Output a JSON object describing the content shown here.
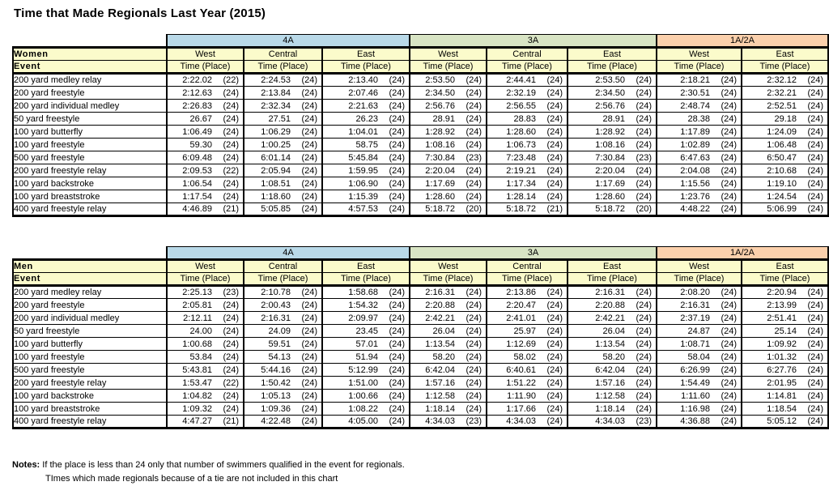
{
  "title": "Time that Made Regionals Last Year (2015)",
  "colors": {
    "band_4a_blue": "#B9D9E8",
    "band_3a_green": "#D8E4C4",
    "band_1a2a_orange": "#FBD0AC",
    "header_yellow": "#FBFBCB"
  },
  "groups": [
    {
      "label": "4A",
      "color_key": "band_4a_blue",
      "regions": [
        "West",
        "Central",
        "East"
      ]
    },
    {
      "label": "3A",
      "color_key": "band_3a_green",
      "regions": [
        "West",
        "Central",
        "East"
      ]
    },
    {
      "label": "1A/2A",
      "color_key": "band_1a2a_orange",
      "regions": [
        "West",
        "East"
      ]
    }
  ],
  "event_label": "Event",
  "time_place_label": "Time (Place)",
  "tables": [
    {
      "name": "Women",
      "rows": [
        {
          "event": "200 yard medley relay",
          "cells": [
            [
              "2:22.02",
              "(22)"
            ],
            [
              "2:24.53",
              "(24)"
            ],
            [
              "2:13.40",
              "(24)"
            ],
            [
              "2:53.50",
              "(24)"
            ],
            [
              "2:44.41",
              "(24)"
            ],
            [
              "2:53.50",
              "(24)"
            ],
            [
              "2:18.21",
              "(24)"
            ],
            [
              "2:32.12",
              "(24)"
            ]
          ]
        },
        {
          "event": "200 yard freestyle",
          "cells": [
            [
              "2:12.63",
              "(24)"
            ],
            [
              "2:13.84",
              "(24)"
            ],
            [
              "2:07.46",
              "(24)"
            ],
            [
              "2:34.50",
              "(24)"
            ],
            [
              "2:32.19",
              "(24)"
            ],
            [
              "2:34.50",
              "(24)"
            ],
            [
              "2:30.51",
              "(24)"
            ],
            [
              "2:32.21",
              "(24)"
            ]
          ]
        },
        {
          "event": "200 yard individual medley",
          "cells": [
            [
              "2:26.83",
              "(24)"
            ],
            [
              "2:32.34",
              "(24)"
            ],
            [
              "2:21.63",
              "(24)"
            ],
            [
              "2:56.76",
              "(24)"
            ],
            [
              "2:56.55",
              "(24)"
            ],
            [
              "2:56.76",
              "(24)"
            ],
            [
              "2:48.74",
              "(24)"
            ],
            [
              "2:52.51",
              "(24)"
            ]
          ]
        },
        {
          "event": "50 yard freestyle",
          "cells": [
            [
              "26.67",
              "(24)"
            ],
            [
              "27.51",
              "(24)"
            ],
            [
              "26.23",
              "(24)"
            ],
            [
              "28.91",
              "(24)"
            ],
            [
              "28.83",
              "(24)"
            ],
            [
              "28.91",
              "(24)"
            ],
            [
              "28.38",
              "(24)"
            ],
            [
              "29.18",
              "(24)"
            ]
          ]
        },
        {
          "event": "100 yard butterfly",
          "cells": [
            [
              "1:06.49",
              "(24)"
            ],
            [
              "1:06.29",
              "(24)"
            ],
            [
              "1:04.01",
              "(24)"
            ],
            [
              "1:28.92",
              "(24)"
            ],
            [
              "1:28.60",
              "(24)"
            ],
            [
              "1:28.92",
              "(24)"
            ],
            [
              "1:17.89",
              "(24)"
            ],
            [
              "1:24.09",
              "(24)"
            ]
          ]
        },
        {
          "event": "100 yard freestyle",
          "cells": [
            [
              "59.30",
              "(24)"
            ],
            [
              "1:00.25",
              "(24)"
            ],
            [
              "58.75",
              "(24)"
            ],
            [
              "1:08.16",
              "(24)"
            ],
            [
              "1:06.73",
              "(24)"
            ],
            [
              "1:08.16",
              "(24)"
            ],
            [
              "1:02.89",
              "(24)"
            ],
            [
              "1:06.48",
              "(24)"
            ]
          ]
        },
        {
          "event": "500 yard freestyle",
          "cells": [
            [
              "6:09.48",
              "(24)"
            ],
            [
              "6:01.14",
              "(24)"
            ],
            [
              "5:45.84",
              "(24)"
            ],
            [
              "7:30.84",
              "(23)"
            ],
            [
              "7:23.48",
              "(24)"
            ],
            [
              "7:30.84",
              "(23)"
            ],
            [
              "6:47.63",
              "(24)"
            ],
            [
              "6:50.47",
              "(24)"
            ]
          ]
        },
        {
          "event": "200 yard freestyle relay",
          "cells": [
            [
              "2:09.53",
              "(22)"
            ],
            [
              "2:05.94",
              "(24)"
            ],
            [
              "1:59.95",
              "(24)"
            ],
            [
              "2:20.04",
              "(24)"
            ],
            [
              "2:19.21",
              "(24)"
            ],
            [
              "2:20.04",
              "(24)"
            ],
            [
              "2:04.08",
              "(24)"
            ],
            [
              "2:10.68",
              "(24)"
            ]
          ]
        },
        {
          "event": "100 yard backstroke",
          "cells": [
            [
              "1:06.54",
              "(24)"
            ],
            [
              "1:08.51",
              "(24)"
            ],
            [
              "1:06.90",
              "(24)"
            ],
            [
              "1:17.69",
              "(24)"
            ],
            [
              "1:17.34",
              "(24)"
            ],
            [
              "1:17.69",
              "(24)"
            ],
            [
              "1:15.56",
              "(24)"
            ],
            [
              "1:19.10",
              "(24)"
            ]
          ]
        },
        {
          "event": "100 yard breaststroke",
          "cells": [
            [
              "1:17.54",
              "(24)"
            ],
            [
              "1:18.60",
              "(24)"
            ],
            [
              "1:15.39",
              "(24)"
            ],
            [
              "1:28.60",
              "(24)"
            ],
            [
              "1:28.14",
              "(24)"
            ],
            [
              "1:28.60",
              "(24)"
            ],
            [
              "1:23.76",
              "(24)"
            ],
            [
              "1:24.54",
              "(24)"
            ]
          ]
        },
        {
          "event": "400 yard freestyle relay",
          "cells": [
            [
              "4:46.89",
              "(21)"
            ],
            [
              "5:05.85",
              "(24)"
            ],
            [
              "4:57.53",
              "(24)"
            ],
            [
              "5:18.72",
              "(20)"
            ],
            [
              "5:18.72",
              "(21)"
            ],
            [
              "5:18.72",
              "(20)"
            ],
            [
              "4:48.22",
              "(24)"
            ],
            [
              "5:06.99",
              "(24)"
            ]
          ]
        }
      ]
    },
    {
      "name": "Men",
      "rows": [
        {
          "event": "200 yard medley relay",
          "cells": [
            [
              "2:25.13",
              "(23)"
            ],
            [
              "2:10.78",
              "(24)"
            ],
            [
              "1:58.68",
              "(24)"
            ],
            [
              "2:16.31",
              "(24)"
            ],
            [
              "2:13.86",
              "(24)"
            ],
            [
              "2:16.31",
              "(24)"
            ],
            [
              "2:08.20",
              "(24)"
            ],
            [
              "2:20.94",
              "(24)"
            ]
          ]
        },
        {
          "event": "200 yard freestyle",
          "cells": [
            [
              "2:05.81",
              "(24)"
            ],
            [
              "2:00.43",
              "(24)"
            ],
            [
              "1:54.32",
              "(24)"
            ],
            [
              "2:20.88",
              "(24)"
            ],
            [
              "2:20.47",
              "(24)"
            ],
            [
              "2:20.88",
              "(24)"
            ],
            [
              "2:16.31",
              "(24)"
            ],
            [
              "2:13.99",
              "(24)"
            ]
          ]
        },
        {
          "event": "200 yard individual medley",
          "cells": [
            [
              "2:12.11",
              "(24)"
            ],
            [
              "2:16.31",
              "(24)"
            ],
            [
              "2:09.97",
              "(24)"
            ],
            [
              "2:42.21",
              "(24)"
            ],
            [
              "2:41.01",
              "(24)"
            ],
            [
              "2:42.21",
              "(24)"
            ],
            [
              "2:37.19",
              "(24)"
            ],
            [
              "2:51.41",
              "(24)"
            ]
          ]
        },
        {
          "event": "50 yard freestyle",
          "cells": [
            [
              "24.00",
              "(24)"
            ],
            [
              "24.09",
              "(24)"
            ],
            [
              "23.45",
              "(24)"
            ],
            [
              "26.04",
              "(24)"
            ],
            [
              "25.97",
              "(24)"
            ],
            [
              "26.04",
              "(24)"
            ],
            [
              "24.87",
              "(24)"
            ],
            [
              "25.14",
              "(24)"
            ]
          ]
        },
        {
          "event": "100 yard butterfly",
          "cells": [
            [
              "1:00.68",
              "(24)"
            ],
            [
              "59.51",
              "(24)"
            ],
            [
              "57.01",
              "(24)"
            ],
            [
              "1:13.54",
              "(24)"
            ],
            [
              "1:12.69",
              "(24)"
            ],
            [
              "1:13.54",
              "(24)"
            ],
            [
              "1:08.71",
              "(24)"
            ],
            [
              "1:09.92",
              "(24)"
            ]
          ]
        },
        {
          "event": "100 yard freestyle",
          "cells": [
            [
              "53.84",
              "(24)"
            ],
            [
              "54.13",
              "(24)"
            ],
            [
              "51.94",
              "(24)"
            ],
            [
              "58.20",
              "(24)"
            ],
            [
              "58.02",
              "(24)"
            ],
            [
              "58.20",
              "(24)"
            ],
            [
              "58.04",
              "(24)"
            ],
            [
              "1:01.32",
              "(24)"
            ]
          ]
        },
        {
          "event": "500 yard freestyle",
          "cells": [
            [
              "5:43.81",
              "(24)"
            ],
            [
              "5:44.16",
              "(24)"
            ],
            [
              "5:12.99",
              "(24)"
            ],
            [
              "6:42.04",
              "(24)"
            ],
            [
              "6:40.61",
              "(24)"
            ],
            [
              "6:42.04",
              "(24)"
            ],
            [
              "6:26.99",
              "(24)"
            ],
            [
              "6:27.76",
              "(24)"
            ]
          ]
        },
        {
          "event": "200 yard freestyle relay",
          "cells": [
            [
              "1:53.47",
              "(22)"
            ],
            [
              "1:50.42",
              "(24)"
            ],
            [
              "1:51.00",
              "(24)"
            ],
            [
              "1:57.16",
              "(24)"
            ],
            [
              "1:51.22",
              "(24)"
            ],
            [
              "1:57.16",
              "(24)"
            ],
            [
              "1:54.49",
              "(24)"
            ],
            [
              "2:01.95",
              "(24)"
            ]
          ]
        },
        {
          "event": "100 yard backstroke",
          "cells": [
            [
              "1:04.82",
              "(24)"
            ],
            [
              "1:05.13",
              "(24)"
            ],
            [
              "1:00.66",
              "(24)"
            ],
            [
              "1:12.58",
              "(24)"
            ],
            [
              "1:11.90",
              "(24)"
            ],
            [
              "1:12.58",
              "(24)"
            ],
            [
              "1:11.60",
              "(24)"
            ],
            [
              "1:14.81",
              "(24)"
            ]
          ]
        },
        {
          "event": "100 yard breaststroke",
          "cells": [
            [
              "1:09.32",
              "(24)"
            ],
            [
              "1:09.36",
              "(24)"
            ],
            [
              "1:08.22",
              "(24)"
            ],
            [
              "1:18.14",
              "(24)"
            ],
            [
              "1:17.66",
              "(24)"
            ],
            [
              "1:18.14",
              "(24)"
            ],
            [
              "1:16.98",
              "(24)"
            ],
            [
              "1:18.54",
              "(24)"
            ]
          ]
        },
        {
          "event": "400 yard freestyle relay",
          "cells": [
            [
              "4:47.27",
              "(21)"
            ],
            [
              "4:22.48",
              "(24)"
            ],
            [
              "4:05.00",
              "(24)"
            ],
            [
              "4:34.03",
              "(23)"
            ],
            [
              "4:34.03",
              "(24)"
            ],
            [
              "4:34.03",
              "(23)"
            ],
            [
              "4:36.88",
              "(24)"
            ],
            [
              "5:05.12",
              "(24)"
            ]
          ]
        }
      ]
    }
  ],
  "notes": {
    "label": "Notes:",
    "line1": "If the place is less than 24 only that number of swimmers qualified in the event for regionals.",
    "line2": "TImes which made regionals because of a tie are not included in this chart"
  }
}
